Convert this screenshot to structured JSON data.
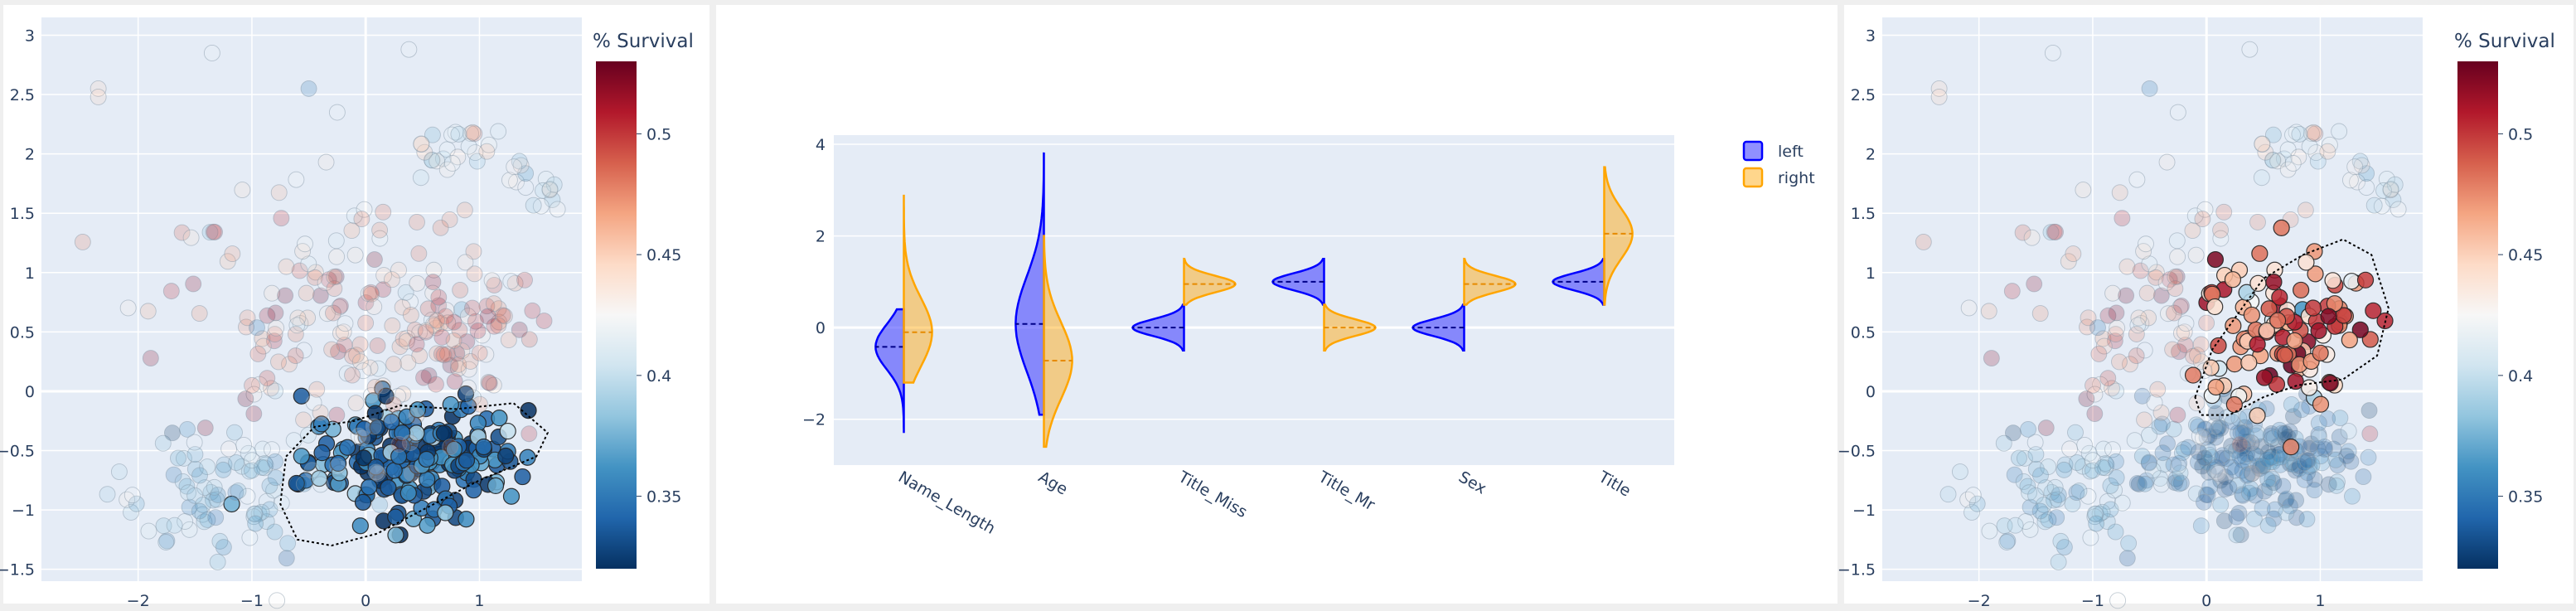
{
  "chart_data": [
    {
      "type": "scatter",
      "panel": "left",
      "title": "",
      "xlabel": "",
      "ylabel": "",
      "xlim": [
        -2.85,
        1.9
      ],
      "ylim": [
        -1.6,
        3.15
      ],
      "xticks": [
        -2,
        -1,
        0,
        1
      ],
      "yticks": [
        -1.5,
        -1,
        -0.5,
        0,
        0.5,
        1,
        1.5,
        2,
        2.5,
        3
      ],
      "grid": true,
      "selection": "dense lower-right cluster enclosed by dotted lasso",
      "colorbar": {
        "title": "% Survival",
        "range": [
          0.32,
          0.53
        ],
        "ticks": [
          0.35,
          0.4,
          0.45,
          0.5
        ],
        "colorscale": "RdBu_r"
      }
    },
    {
      "type": "violin",
      "panel": "middle",
      "title": "",
      "xlabel": "",
      "ylabel": "",
      "categories": [
        "Name_Length",
        "Age",
        "Title_Miss",
        "Title_Mr",
        "Sex",
        "Title"
      ],
      "yticks": [
        -2,
        0,
        2,
        4
      ],
      "ylim": [
        -3.0,
        4.2
      ],
      "grid": true,
      "legend_position": "top-right",
      "series": [
        {
          "name": "left",
          "color": "#0000ff",
          "medians": [
            -0.42,
            0.08,
            0.0,
            1.0,
            0.0,
            1.0
          ],
          "ranges": [
            [
              -2.3,
              0.4
            ],
            [
              -1.9,
              3.8
            ],
            [
              -0.5,
              0.5
            ],
            [
              0.5,
              1.5
            ],
            [
              -0.5,
              0.5
            ],
            [
              0.5,
              1.5
            ]
          ]
        },
        {
          "name": "right",
          "color": "#ffa500",
          "medians": [
            -0.1,
            -0.72,
            0.95,
            0.0,
            0.95,
            2.05
          ],
          "ranges": [
            [
              -1.2,
              2.9
            ],
            [
              -2.6,
              2.0
            ],
            [
              0.5,
              1.5
            ],
            [
              -0.5,
              0.5
            ],
            [
              0.5,
              1.5
            ],
            [
              0.5,
              3.5
            ]
          ]
        }
      ]
    },
    {
      "type": "scatter",
      "panel": "right",
      "title": "",
      "xlabel": "",
      "ylabel": "",
      "xlim": [
        -2.85,
        1.9
      ],
      "ylim": [
        -1.6,
        3.15
      ],
      "xticks": [
        -2,
        -1,
        0,
        1
      ],
      "yticks": [
        -1.5,
        -1,
        -0.5,
        0,
        0.5,
        1,
        1.5,
        2,
        2.5,
        3
      ],
      "grid": true,
      "selection": "upper-right cluster enclosed by dotted lasso",
      "colorbar": {
        "title": "% Survival",
        "range": [
          0.32,
          0.53
        ],
        "ticks": [
          0.35,
          0.4,
          0.45,
          0.5
        ],
        "colorscale": "RdBu_r"
      }
    }
  ]
}
